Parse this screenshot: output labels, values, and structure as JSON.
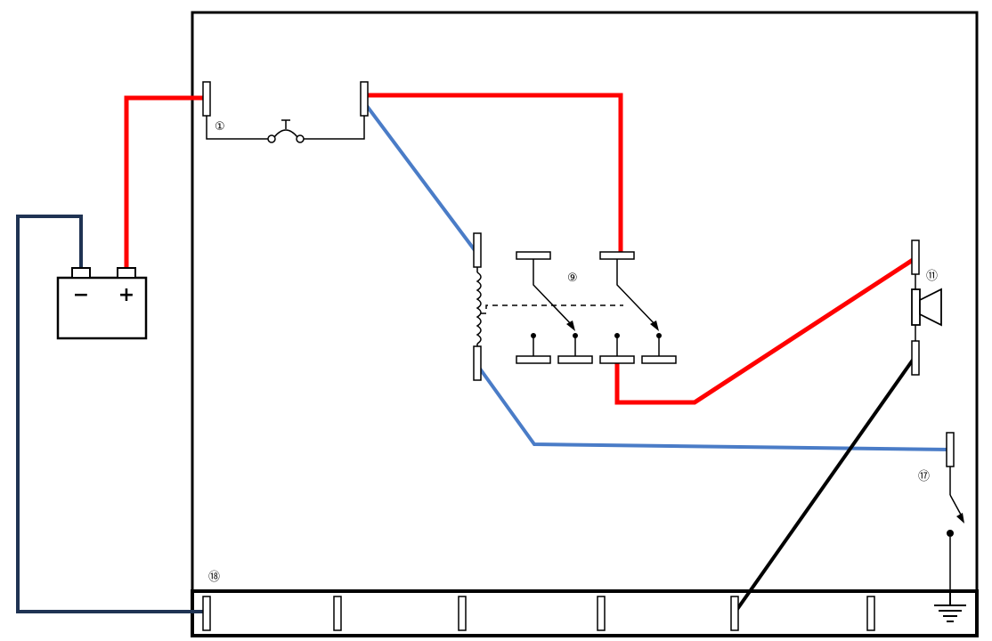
{
  "labels": {
    "fuse": "①",
    "relay": "⑨",
    "horn": "⑪",
    "switch": "⑰",
    "ground_bus": "⑱"
  },
  "battery": {
    "negative": "−",
    "positive": "+"
  },
  "wire_colors": {
    "power": "#ff0000",
    "control": "#4a7cc7",
    "battery_ground": "#1f3353",
    "ground": "#000000"
  }
}
